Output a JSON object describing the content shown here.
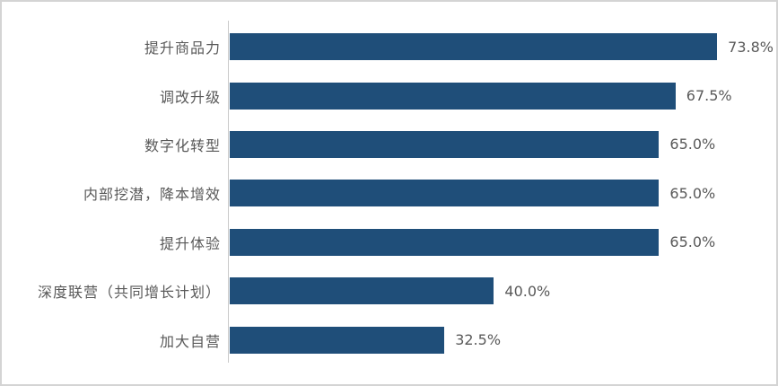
{
  "chart_data": {
    "type": "bar",
    "orientation": "horizontal",
    "title": "",
    "xlabel": "",
    "ylabel": "",
    "categories": [
      "提升商品力",
      "调改升级",
      "数字化转型",
      "内部挖潜，降本增效",
      "提升体验",
      "深度联营（共同增长计划）",
      "加大自营"
    ],
    "values": [
      73.8,
      67.5,
      65.0,
      65.0,
      65.0,
      40.0,
      32.5
    ],
    "value_labels": [
      "73.8%",
      "67.5%",
      "65.0%",
      "65.0%",
      "65.0%",
      "40.0%",
      "32.5%"
    ],
    "xlim": [
      0,
      80
    ],
    "grid": false,
    "legend": false,
    "bar_color": "#1f4e79",
    "label_color": "#595959",
    "axis_line_color": "#c9c9c9",
    "frame_border_color": "#d4d4d4",
    "background_color": "#ffffff"
  }
}
